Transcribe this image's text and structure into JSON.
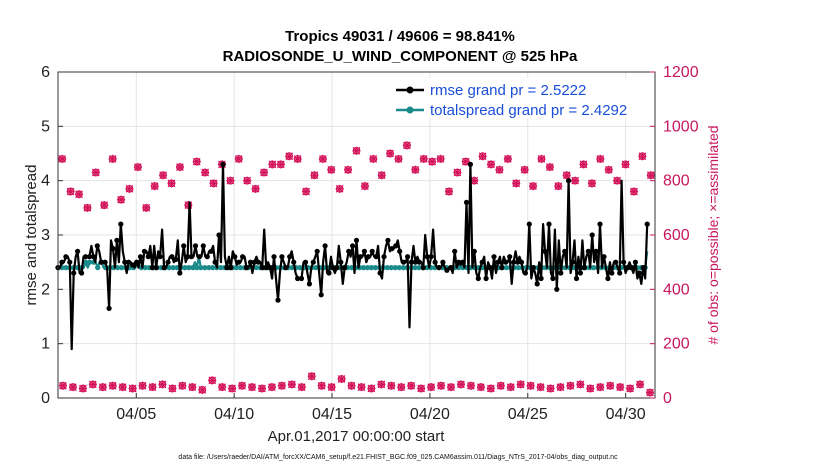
{
  "chart_data": {
    "type": "line",
    "title_line1": "Tropics 49031 / 49606 = 98.841%",
    "title_line2": "RADIOSONDE_U_WIND_COMPONENT @ 525 hPa",
    "xlabel": "Apr.01,2017 00:00:00 start",
    "ylabel_left": "rmse and totalspread",
    "ylabel_right": "# of obs: o=possible; ×=assimilated",
    "footnote": "data file: /Users/raeder/DAI/ATM_forcXX/CAM6_setup/f.e21.FHIST_BGC.f09_025.CAM6assim.011/Diags_NTrS_2017-04/obs_diag_output.nc",
    "xlim": [
      1,
      31.5
    ],
    "ylim_left": [
      0,
      6
    ],
    "ylim_right": [
      0,
      1200
    ],
    "x_ticks": [
      5,
      10,
      15,
      20,
      25,
      30
    ],
    "x_tick_labels": [
      "04/05",
      "04/10",
      "04/15",
      "04/20",
      "04/25",
      "04/30"
    ],
    "y_left_ticks": [
      "0",
      "1",
      "2",
      "3",
      "4",
      "5",
      "6"
    ],
    "y_right_ticks": [
      "0",
      "200",
      "400",
      "600",
      "800",
      "1000",
      "1200"
    ],
    "legend": {
      "position": "top-right",
      "rmse_label": "rmse grand pr = 2.5222",
      "spread_label": "totalspread grand pr = 2.4292"
    },
    "colors": {
      "rmse": "#000000",
      "spread": "#1a8a8a",
      "obs": "#d4145a",
      "right_axis": "#c8175e"
    },
    "series": [
      {
        "name": "rmse",
        "values": [
          2.4,
          2.4,
          2.5,
          2.5,
          2.6,
          2.6,
          2.5,
          0.9,
          2.3,
          2.6,
          2.7,
          2.3,
          2.3,
          2.6,
          2.6,
          2.6,
          2.6,
          2.8,
          2.6,
          2.5,
          2.8,
          2.7,
          2.5,
          2.5,
          2.5,
          2.4,
          1.65,
          2.9,
          2.75,
          2.4,
          2.9,
          2.5,
          3.2,
          2.7,
          2.5,
          2.3,
          2.5,
          2.5,
          2.45,
          2.4,
          2.5,
          2.4,
          2.6,
          2.4,
          2.7,
          2.7,
          2.6,
          2.8,
          2.4,
          2.8,
          2.4,
          2.7,
          2.6,
          3.1,
          2.4,
          2.4,
          2.5,
          2.6,
          2.6,
          2.5,
          2.55,
          2.9,
          2.3,
          2.5,
          2.8,
          2.5,
          2.6,
          3.6,
          2.6,
          2.6,
          2.8,
          2.6,
          2.6,
          2.6,
          2.8,
          2.6,
          2.6,
          2.7,
          2.7,
          2.8,
          2.5,
          2.4,
          3.0,
          2.5,
          4.3,
          2.6,
          2.4,
          2.6,
          2.4,
          2.7,
          2.6,
          2.45,
          2.5,
          2.5,
          2.6,
          2.6,
          2.4,
          2.4,
          2.5,
          2.3,
          2.5,
          2.6,
          2.5,
          2.5,
          2.4,
          3.1,
          2.4,
          2.5,
          2.4,
          2.2,
          2.6,
          2.2,
          1.8,
          2.3,
          2.6,
          2.5,
          2.4,
          2.4,
          2.6,
          2.7,
          2.5,
          2.3,
          2.2,
          2.2,
          2.2,
          2.5,
          2.5,
          2.3,
          2.1,
          2.4,
          2.5,
          2.6,
          2.7,
          2.3,
          1.9,
          2.5,
          2.8,
          2.3,
          2.3,
          2.6,
          2.4,
          2.3,
          2.4,
          2.8,
          2.5,
          2.1,
          2.4,
          2.5,
          2.7,
          2.6,
          2.8,
          2.3,
          2.9,
          2.4,
          2.6,
          2.6,
          2.7,
          2.5,
          2.6,
          2.6,
          2.7,
          2.6,
          2.6,
          2.8,
          2.3,
          2.2,
          2.6,
          2.8,
          2.9,
          2.7,
          2.75,
          2.75,
          2.8,
          2.9,
          2.7,
          2.5,
          2.5,
          2.5,
          2.6,
          1.3,
          2.5,
          2.8,
          2.5,
          2.6,
          2.5,
          2.5,
          2.4,
          3.0,
          2.6,
          2.4,
          2.6,
          3.1,
          2.5,
          2.4,
          2.4,
          2.4,
          2.5,
          2.4,
          2.35,
          2.4,
          2.4,
          2.3,
          2.7,
          2.4,
          2.5,
          2.45,
          2.5,
          2.4,
          3.6,
          2.3,
          4.3,
          2.4,
          2.7,
          2.3,
          2.2,
          2.4,
          2.5,
          2.6,
          2.2,
          2.5,
          2.4,
          2.2,
          2.6,
          2.3,
          2.5,
          2.6,
          2.4,
          2.6,
          2.5,
          2.5,
          2.6,
          2.1,
          2.5,
          2.7,
          2.5,
          2.6,
          2.5,
          2.3,
          2.3,
          2.4,
          3.2,
          2.2,
          2.4,
          2.3,
          2.1,
          2.5,
          2.2,
          3.2,
          2.7,
          2.4,
          3.2,
          2.3,
          2.2,
          3.1,
          2.0,
          2.9,
          2.3,
          2.6,
          2.7,
          2.4,
          4.0,
          2.3,
          2.5,
          2.9,
          2.2,
          2.6,
          2.3,
          2.9,
          2.4,
          2.6,
          2.7,
          2.4,
          3.0,
          2.5,
          2.7,
          2.3,
          3.2,
          2.4,
          2.6,
          2.4,
          2.2,
          2.5,
          2.3,
          2.5,
          2.5,
          2.4,
          2.3,
          4.0,
          2.5,
          2.3,
          2.4,
          2.5,
          2.4,
          2.3,
          2.5,
          2.2,
          2.3,
          2.1,
          2.4,
          2.2,
          3.2
        ]
      },
      {
        "name": "totalspread",
        "values": [
          2.4,
          2.4,
          2.4,
          2.4,
          2.4,
          2.4,
          2.4,
          2.4,
          2.4,
          2.4,
          2.4,
          2.4,
          2.4,
          2.4,
          2.5,
          2.4,
          2.5,
          2.5,
          2.5,
          2.5,
          2.4,
          2.5,
          2.5,
          2.4,
          2.4,
          2.4,
          2.4,
          2.4,
          2.4,
          2.4,
          2.4,
          2.4,
          2.4,
          2.4,
          2.4,
          2.4,
          2.4,
          2.4,
          2.4,
          2.4,
          2.5,
          2.4,
          2.4,
          2.4,
          2.4,
          2.4,
          2.4,
          2.4,
          2.4,
          2.4,
          2.4,
          2.4,
          2.4,
          2.4,
          2.4,
          2.4,
          2.4,
          2.4,
          2.4,
          2.4,
          2.4,
          2.4,
          2.4,
          2.4,
          2.4,
          2.4,
          2.4,
          2.4,
          2.4,
          2.5,
          2.4,
          2.6,
          2.4,
          2.4,
          2.4,
          2.4,
          2.4,
          2.4,
          2.4,
          2.4,
          2.4,
          2.4,
          2.4,
          2.4,
          2.4,
          2.4,
          2.4,
          2.4,
          2.4,
          2.4,
          2.4,
          2.4,
          2.4,
          2.4,
          2.4,
          2.4,
          2.4,
          2.4,
          2.4,
          2.4,
          2.4,
          2.4,
          2.4,
          2.4,
          2.4,
          2.4,
          2.4,
          2.4,
          2.4,
          2.4,
          2.4,
          2.4,
          2.4,
          2.4,
          2.4,
          2.4,
          2.4,
          2.4,
          2.4,
          2.4,
          2.4,
          2.4,
          2.4,
          2.4,
          2.4,
          2.4,
          2.4,
          2.4,
          2.4,
          2.4,
          2.4,
          2.4,
          2.4,
          2.4,
          2.4,
          2.4,
          2.4,
          2.4,
          2.4,
          2.4,
          2.4,
          2.4,
          2.4,
          2.4,
          2.4,
          2.4,
          2.4,
          2.4,
          2.4,
          2.4,
          2.4,
          2.4,
          2.4,
          2.4,
          2.4,
          2.4,
          2.4,
          2.4,
          2.4,
          2.4,
          2.4,
          2.4,
          2.4,
          2.4,
          2.4,
          2.4,
          2.4,
          2.4,
          2.4,
          2.4,
          2.4,
          2.4,
          2.4,
          2.4,
          2.4,
          2.4,
          2.4,
          2.4,
          2.4,
          2.4,
          2.4,
          2.4,
          2.4,
          2.4,
          2.4,
          2.4,
          2.4,
          2.4,
          2.4,
          2.4,
          2.4,
          2.4,
          2.4,
          2.4,
          2.4,
          2.4,
          2.4,
          2.4,
          2.4,
          2.4,
          2.4,
          2.4,
          2.4,
          2.4,
          2.4,
          2.4,
          2.4,
          2.4,
          2.4,
          2.4,
          2.4,
          2.4,
          2.4,
          2.4,
          2.4,
          2.4,
          2.4,
          2.4,
          2.4,
          2.4,
          2.4,
          2.4,
          2.4,
          2.4,
          2.4,
          2.4,
          2.4,
          2.4,
          2.4,
          2.4,
          2.4,
          2.4,
          2.4,
          2.4,
          2.4,
          2.4,
          2.4,
          2.4,
          2.4,
          2.4,
          2.4,
          2.4,
          2.4,
          2.4,
          2.4,
          2.4,
          2.4,
          2.4,
          2.4,
          2.4,
          2.4,
          2.4,
          2.4,
          2.4,
          2.4,
          2.4,
          2.4,
          2.4,
          2.4,
          2.4,
          2.4,
          2.4,
          2.4,
          2.4,
          2.4,
          2.4,
          2.4,
          2.4,
          2.4,
          2.4,
          2.4,
          2.4,
          2.4,
          2.4,
          2.4,
          2.4,
          2.4,
          2.4,
          2.4,
          2.4,
          2.4,
          2.4,
          2.4,
          2.4,
          2.4,
          2.4,
          2.4,
          2.4,
          2.4,
          2.4,
          2.4,
          2.4,
          2.4,
          2.4,
          2.4,
          2.4,
          2.4,
          2.7
        ]
      }
    ],
    "obs_possible": {
      "name": "possible",
      "values": [
        880,
        760,
        750,
        700,
        830,
        710,
        880,
        730,
        770,
        850,
        700,
        780,
        820,
        790,
        850,
        710,
        870,
        830,
        790,
        860,
        800,
        880,
        800,
        770,
        830,
        860,
        860,
        890,
        880,
        760,
        820,
        880,
        840,
        770,
        840,
        910,
        780,
        880,
        820,
        900,
        880,
        930,
        840,
        880,
        870,
        880,
        760,
        830,
        870,
        800,
        890,
        860,
        840,
        880,
        790,
        840,
        780,
        880,
        850,
        780,
        820,
        800,
        860,
        790,
        880,
        840,
        800,
        860,
        760,
        890,
        820
      ],
      "low_values": [
        45,
        40,
        35,
        50,
        40,
        45,
        40,
        35,
        45,
        40,
        50,
        35,
        45,
        40,
        30,
        65,
        40,
        35,
        45,
        40,
        35,
        40,
        45,
        50,
        40,
        80,
        45,
        40,
        70,
        45,
        40,
        35,
        50,
        45,
        40,
        45,
        35,
        40,
        45,
        40,
        50,
        45,
        40,
        35,
        45,
        40,
        50,
        45,
        40,
        35,
        40,
        45,
        50,
        35,
        40,
        45,
        40,
        35,
        50,
        20
      ]
    }
  }
}
